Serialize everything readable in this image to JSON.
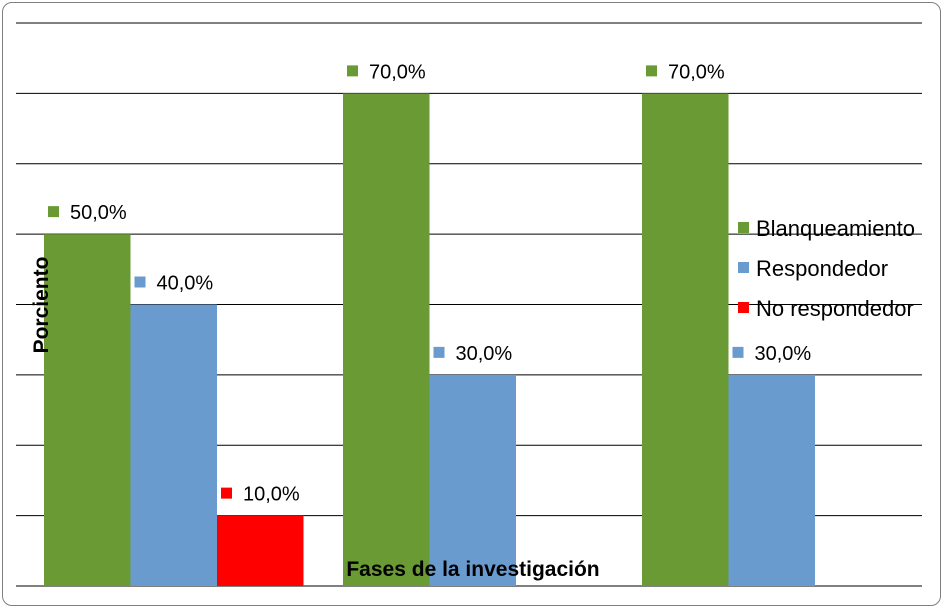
{
  "chart_data": {
    "type": "bar",
    "categories": [
      "",
      "",
      ""
    ],
    "series": [
      {
        "name": "Blanqueamiento",
        "color": "#6a9a34",
        "values": [
          50.0,
          70.0,
          70.0
        ],
        "labels": [
          "50,0%",
          "70,0%",
          "70,0%"
        ]
      },
      {
        "name": "Respondedor",
        "color": "#6a9bcf",
        "values": [
          40.0,
          30.0,
          30.0
        ],
        "labels": [
          "40,0%",
          "30,0%",
          "30,0%"
        ]
      },
      {
        "name": "No respondedor",
        "color": "#ff0000",
        "values": [
          10.0,
          0,
          0
        ],
        "labels": [
          "10,0%",
          "",
          ""
        ]
      }
    ],
    "title": "",
    "xlabel": "Fases de la investigación",
    "ylabel": "Porciento",
    "ylim": [
      0,
      80
    ],
    "grid": true,
    "legend": "right"
  }
}
